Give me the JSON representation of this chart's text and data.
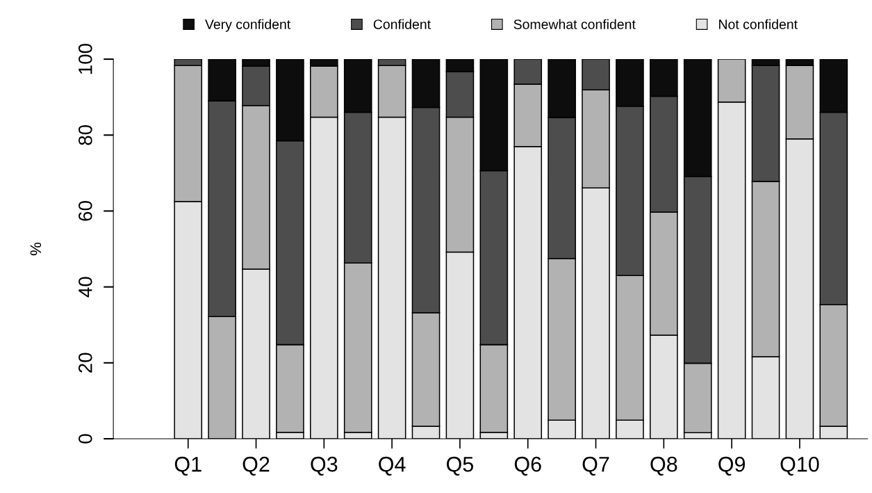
{
  "chart_data": {
    "type": "bar",
    "stacked": true,
    "ylabel": "%",
    "categories": [
      "Q1",
      null,
      "Q2",
      null,
      "Q3",
      null,
      "Q4",
      null,
      "Q5",
      null,
      "Q6",
      null,
      "Q7",
      null,
      "Q8",
      null,
      "Q9",
      null,
      "Q10",
      null
    ],
    "ylim": [
      0,
      100
    ],
    "yticks": [
      0,
      20,
      40,
      60,
      80,
      100
    ],
    "grid": false,
    "legend": "top",
    "series": [
      {
        "name": "Not confident",
        "color": "#e3e3e3",
        "values": [
          62.5,
          0,
          44.7,
          1.7,
          84.7,
          1.7,
          84.7,
          3.3,
          49.2,
          1.7,
          77,
          4.9,
          66.1,
          4.9,
          27.3,
          1.6,
          88.7,
          21.6,
          79,
          3.3
        ]
      },
      {
        "name": "Somewhat confident",
        "color": "#b2b2b2",
        "values": [
          35.8,
          32.2,
          43.1,
          23.1,
          13.5,
          44.6,
          13.6,
          29.9,
          35.5,
          23.1,
          16.4,
          42.6,
          25.8,
          38.1,
          32.4,
          18.3,
          11.3,
          46.2,
          19.3,
          32
        ]
      },
      {
        "name": "Confident",
        "color": "#4d4d4d",
        "values": [
          1.7,
          56.8,
          10.4,
          53.7,
          0,
          39.7,
          1.7,
          54.1,
          12,
          45.8,
          6.6,
          37.1,
          8.1,
          44.6,
          30.5,
          49.2,
          0,
          30.5,
          0,
          50.7
        ]
      },
      {
        "name": "Very confident",
        "color": "#0d0d0d",
        "values": [
          0,
          11,
          1.8,
          21.5,
          1.8,
          14,
          0,
          12.7,
          3.3,
          29.4,
          0,
          15.4,
          0,
          12.4,
          9.8,
          30.9,
          0,
          1.7,
          1.7,
          14
        ]
      }
    ]
  }
}
